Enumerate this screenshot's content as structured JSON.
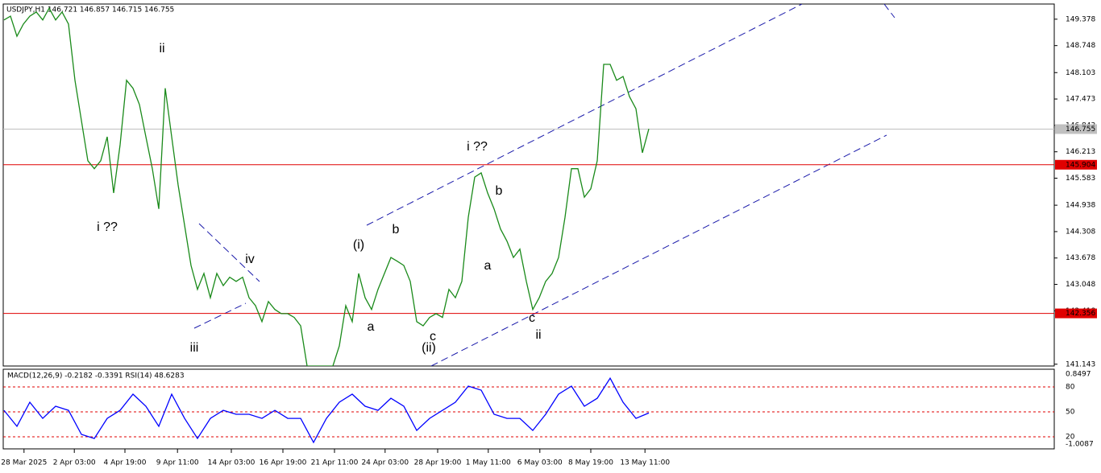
{
  "chart_data": [
    {
      "type": "line",
      "title": "USDJPY,H1 146.721 146.857 146.715 146.755",
      "color": "#1a8a1a",
      "values": [
        149.36,
        149.45,
        148.97,
        149.26,
        149.45,
        149.55,
        149.36,
        149.64,
        149.36,
        149.55,
        149.26,
        147.92,
        146.96,
        146.0,
        145.81,
        146.0,
        146.57,
        145.23,
        146.38,
        147.92,
        147.73,
        147.34,
        146.57,
        145.81,
        144.85,
        147.73,
        146.57,
        145.42,
        144.46,
        143.5,
        142.93,
        143.31,
        142.73,
        143.31,
        143.02,
        143.22,
        143.12,
        143.22,
        142.73,
        142.54,
        142.16,
        142.64,
        142.45,
        142.35,
        142.35,
        142.26,
        142.06,
        141.1,
        141.1,
        141.1,
        141.1,
        141.1,
        141.58,
        142.54,
        142.16,
        143.31,
        142.73,
        142.45,
        142.93,
        143.31,
        143.69,
        143.6,
        143.5,
        143.12,
        142.16,
        142.06,
        142.26,
        142.35,
        142.26,
        142.93,
        142.73,
        143.12,
        144.65,
        145.61,
        145.71,
        145.23,
        144.85,
        144.37,
        144.08,
        143.69,
        143.89,
        143.12,
        142.45,
        142.73,
        143.12,
        143.31,
        143.69,
        144.65,
        145.81,
        145.81,
        145.13,
        145.33,
        146.0,
        148.3,
        148.3,
        147.92,
        148.01,
        147.53,
        147.24,
        146.19,
        146.76
      ],
      "xlim": [
        0,
        100
      ],
      "xticks": [
        {
          "value": 3.1,
          "label": "28 Mar 2025"
        },
        {
          "value": 10.9,
          "label": "2 Apr 03:00"
        },
        {
          "value": 18.75,
          "label": "4 Apr 19:00"
        },
        {
          "value": 26.9,
          "label": "9 Apr 11:00"
        },
        {
          "value": 35.25,
          "label": "14 Apr 03:00"
        },
        {
          "value": 43.25,
          "label": "16 Apr 19:00"
        },
        {
          "value": 51.25,
          "label": "21 Apr 11:00"
        },
        {
          "value": 59.1,
          "label": "24 Apr 03:00"
        },
        {
          "value": 67.25,
          "label": "28 Apr 19:00"
        },
        {
          "value": 75.1,
          "label": "1 May 11:00"
        },
        {
          "value": 83.1,
          "label": "6 May 03:00"
        },
        {
          "value": 91,
          "label": "8 May 19:00"
        },
        {
          "value": 99.4,
          "label": "13 May 11:00"
        }
      ],
      "ylim": [
        141.1,
        149.74
      ],
      "yticks": [
        149.378,
        148.748,
        148.103,
        147.473,
        146.843,
        146.213,
        145.583,
        144.938,
        144.308,
        143.678,
        143.048,
        142.418,
        141.143
      ],
      "hlines": [
        {
          "value": 146.755,
          "color": "#c0c0c0"
        },
        {
          "value": 145.904,
          "color": "#e00000"
        },
        {
          "value": 142.356,
          "color": "#e00000"
        }
      ],
      "annotations": [
        {
          "text": "ii",
          "color": "#ff00ff"
        },
        {
          "text": "i ??",
          "color": "#ff00ff"
        },
        {
          "text": "iii",
          "color": "#ff00ff"
        },
        {
          "text": "iv",
          "color": "#ff00ff"
        },
        {
          "text": "(i)",
          "color": "#0000cc"
        },
        {
          "text": "b",
          "color": "#ff00ff"
        },
        {
          "text": "a",
          "color": "#ff00ff"
        },
        {
          "text": "(ii)",
          "color": "#0000cc"
        },
        {
          "text": "c",
          "color": "#ff00ff"
        },
        {
          "text": "i ??",
          "color": "#ff00ff"
        },
        {
          "text": "b",
          "color": "#000000"
        },
        {
          "text": "a",
          "color": "#000000"
        },
        {
          "text": "c",
          "color": "#000000"
        },
        {
          "text": "ii",
          "color": "#ff00ff"
        }
      ]
    },
    {
      "type": "line",
      "title": "MACD(12,26,9) -0.2182 -0.3391 RSI(14) 48.6283",
      "color": "#0000ff",
      "values": [
        51.9,
        32.6,
        61.6,
        42.2,
        56.8,
        51.9,
        22.9,
        18.0,
        42.2,
        51.9,
        71.3,
        56.8,
        32.6,
        71.3,
        42.2,
        18.0,
        42.2,
        51.9,
        47.1,
        47.1,
        42.2,
        51.9,
        42.2,
        42.2,
        13.2,
        42.2,
        61.6,
        71.3,
        56.8,
        51.9,
        66.4,
        56.8,
        27.7,
        42.2,
        51.9,
        61.6,
        81.0,
        76.1,
        47.1,
        42.2,
        42.2,
        27.7,
        47.1,
        71.3,
        81.0,
        56.8,
        66.4,
        90.6,
        61.6,
        42.2,
        48.63
      ],
      "xlim": [
        0,
        50
      ],
      "ylim": [
        5.5,
        101.3
      ],
      "yticks": [
        80,
        50,
        20
      ],
      "level_color": "#e00000",
      "y2lim": [
        -1.0087,
        0.8497
      ],
      "y2ticks": [
        0.8497,
        -1.0087
      ]
    }
  ]
}
